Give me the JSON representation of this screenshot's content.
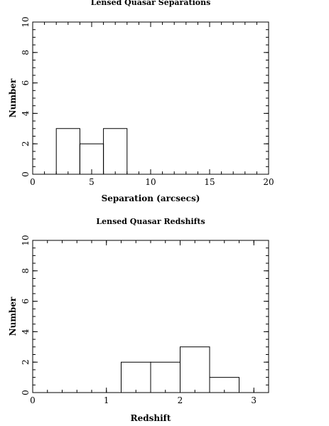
{
  "chart_data": [
    {
      "type": "bar",
      "title": "Lensed Quasar Separations",
      "xlabel": "Separation (arcsecs)",
      "ylabel": "Number",
      "xlim": [
        0,
        20
      ],
      "ylim": [
        0,
        10
      ],
      "grid": false,
      "bins": [
        {
          "x0": 2,
          "x1": 4,
          "value": 3
        },
        {
          "x0": 4,
          "x1": 6,
          "value": 2
        },
        {
          "x0": 6,
          "x1": 8,
          "value": 3
        }
      ],
      "x_ticks": [
        0,
        5,
        10,
        15,
        20
      ],
      "y_ticks": [
        0,
        2,
        4,
        6,
        8,
        10
      ]
    },
    {
      "type": "bar",
      "title": "Lensed Quasar Redshifts",
      "xlabel": "Redshift",
      "ylabel": "Number",
      "xlim": [
        0,
        3.2
      ],
      "ylim": [
        0,
        10
      ],
      "grid": false,
      "bins": [
        {
          "x0": 1.2,
          "x1": 1.6,
          "value": 2
        },
        {
          "x0": 1.6,
          "x1": 2.0,
          "value": 2
        },
        {
          "x0": 2.0,
          "x1": 2.4,
          "value": 3
        },
        {
          "x0": 2.4,
          "x1": 2.8,
          "value": 1
        }
      ],
      "x_ticks": [
        0,
        1,
        2,
        3
      ],
      "y_ticks": [
        0,
        2,
        4,
        6,
        8,
        10
      ]
    }
  ]
}
